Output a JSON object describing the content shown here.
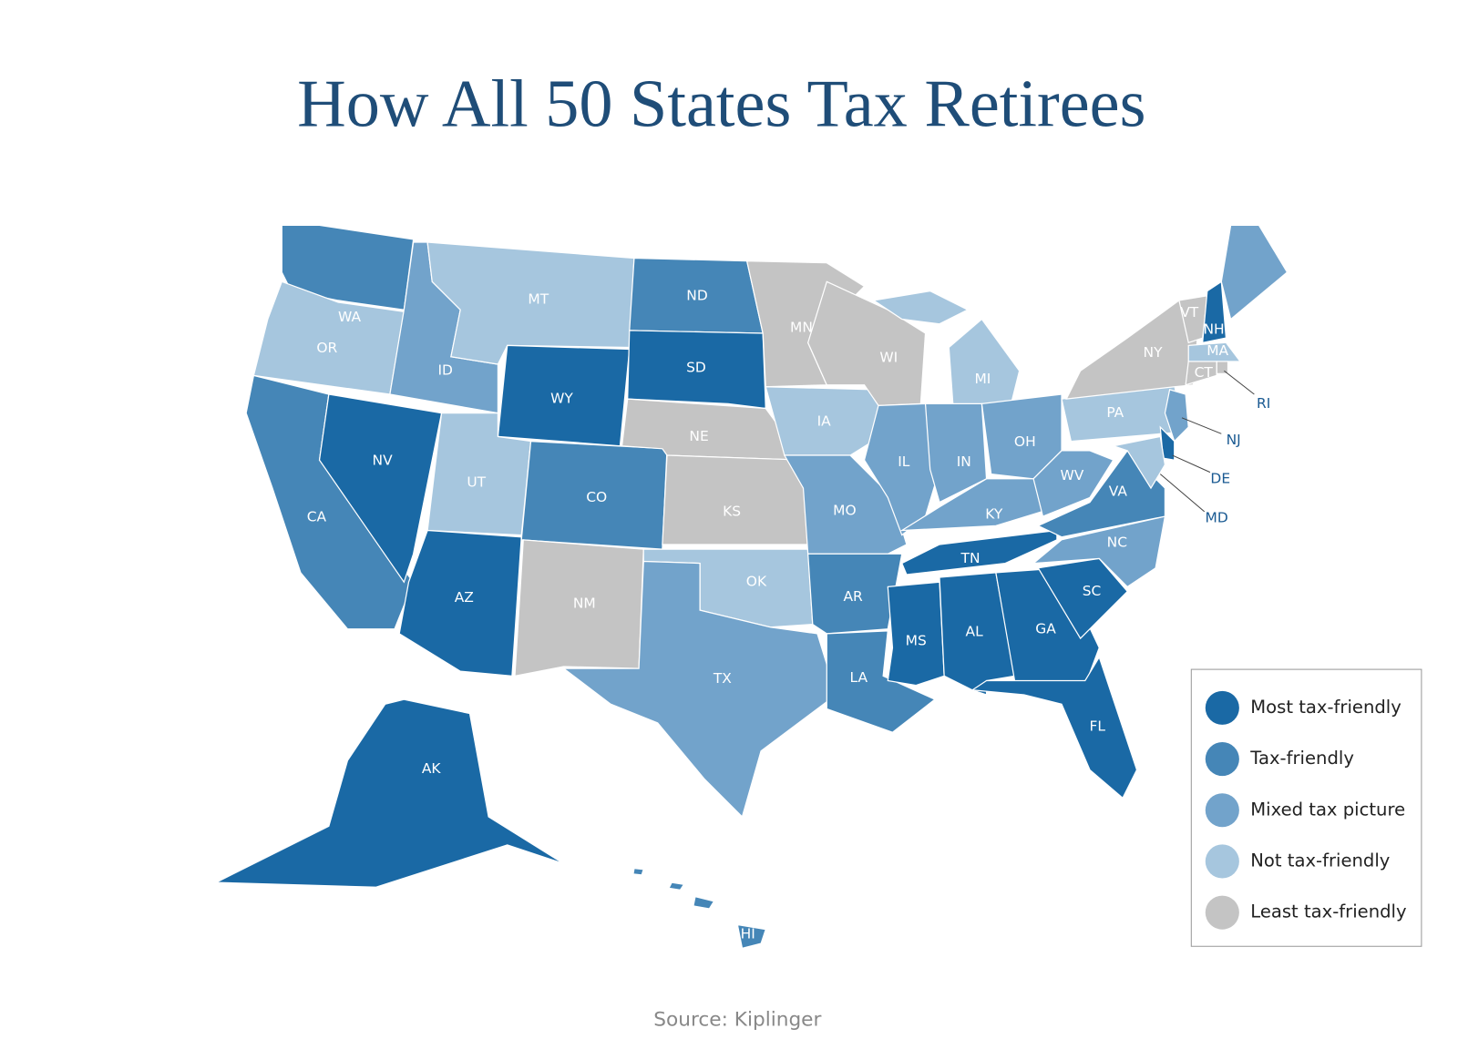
{
  "title": "How All 50 States Tax Retirees",
  "legend": {
    "items": [
      {
        "name": "Most tax-friendly",
        "color": "#1a69a5"
      },
      {
        "name": "Tax-friendly",
        "color": "#4586b7"
      },
      {
        "name": "Mixed tax picture",
        "color": "#72a3cb"
      },
      {
        "name": "Not tax-friendly",
        "color": "#a6c6de"
      },
      {
        "name": "Least tax-friendly",
        "color": "#c4c4c4"
      }
    ]
  },
  "states": [
    {
      "label": "WA",
      "category": "Tax-friendly"
    },
    {
      "label": "OR",
      "category": "Not tax-friendly"
    },
    {
      "label": "CA",
      "category": "Tax-friendly"
    },
    {
      "label": "NV",
      "category": "Most tax-friendly"
    },
    {
      "label": "ID",
      "category": "Mixed tax picture"
    },
    {
      "label": "MT",
      "category": "Not tax-friendly"
    },
    {
      "label": "WY",
      "category": "Most tax-friendly"
    },
    {
      "label": "UT",
      "category": "Not tax-friendly"
    },
    {
      "label": "CO",
      "category": "Tax-friendly"
    },
    {
      "label": "AZ",
      "category": "Most tax-friendly"
    },
    {
      "label": "NM",
      "category": "Least tax-friendly"
    },
    {
      "label": "ND",
      "category": "Tax-friendly"
    },
    {
      "label": "SD",
      "category": "Most tax-friendly"
    },
    {
      "label": "NE",
      "category": "Least tax-friendly"
    },
    {
      "label": "KS",
      "category": "Least tax-friendly"
    },
    {
      "label": "OK",
      "category": "Not tax-friendly"
    },
    {
      "label": "TX",
      "category": "Mixed tax picture"
    },
    {
      "label": "MN",
      "category": "Least tax-friendly"
    },
    {
      "label": "IA",
      "category": "Not tax-friendly"
    },
    {
      "label": "MO",
      "category": "Mixed tax picture"
    },
    {
      "label": "AR",
      "category": "Tax-friendly"
    },
    {
      "label": "LA",
      "category": "Tax-friendly"
    },
    {
      "label": "WI",
      "category": "Least tax-friendly"
    },
    {
      "label": "IL",
      "category": "Mixed tax picture"
    },
    {
      "label": "MI",
      "category": "Not tax-friendly"
    },
    {
      "label": "IN",
      "category": "Mixed tax picture"
    },
    {
      "label": "OH",
      "category": "Mixed tax picture"
    },
    {
      "label": "KY",
      "category": "Mixed tax picture"
    },
    {
      "label": "TN",
      "category": "Most tax-friendly"
    },
    {
      "label": "MS",
      "category": "Most tax-friendly"
    },
    {
      "label": "AL",
      "category": "Most tax-friendly"
    },
    {
      "label": "GA",
      "category": "Most tax-friendly"
    },
    {
      "label": "FL",
      "category": "Most tax-friendly"
    },
    {
      "label": "SC",
      "category": "Most tax-friendly"
    },
    {
      "label": "NC",
      "category": "Mixed tax picture"
    },
    {
      "label": "VA",
      "category": "Tax-friendly"
    },
    {
      "label": "WV",
      "category": "Mixed tax picture"
    },
    {
      "label": "PA",
      "category": "Not tax-friendly"
    },
    {
      "label": "NY",
      "category": "Least tax-friendly"
    },
    {
      "label": "VT",
      "category": "Least tax-friendly"
    },
    {
      "label": "NH",
      "category": "Most tax-friendly"
    },
    {
      "label": null,
      "category": "Mixed tax picture"
    },
    {
      "label": "MA",
      "category": "Not tax-friendly"
    },
    {
      "label": "RI",
      "category": "Least tax-friendly"
    },
    {
      "label": "CT",
      "category": "Least tax-friendly"
    },
    {
      "label": "NJ",
      "category": "Mixed tax picture"
    },
    {
      "label": "DE",
      "category": "Most tax-friendly"
    },
    {
      "label": "MD",
      "category": "Not tax-friendly"
    },
    {
      "label": "AK",
      "category": "Most tax-friendly"
    },
    {
      "label": "HI",
      "category": "Tax-friendly"
    }
  ],
  "source": "Source: Kiplinger"
}
